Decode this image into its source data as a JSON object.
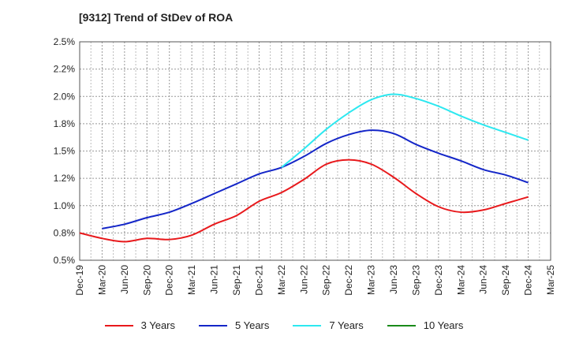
{
  "chart_data": {
    "type": "line",
    "title": "[9312]  Trend of StDev of ROA",
    "xlabel": "",
    "ylabel": "",
    "ylim": [
      0.5,
      2.5
    ],
    "yticks": [
      "0.5%",
      "0.8%",
      "1.0%",
      "1.2%",
      "1.5%",
      "1.8%",
      "2.0%",
      "2.2%",
      "2.5%"
    ],
    "categories": [
      "Dec-19",
      "Mar-20",
      "Jun-20",
      "Sep-20",
      "Dec-20",
      "Mar-21",
      "Jun-21",
      "Sep-21",
      "Dec-21",
      "Mar-22",
      "Jun-22",
      "Sep-22",
      "Dec-22",
      "Mar-23",
      "Jun-23",
      "Sep-23",
      "Dec-23",
      "Mar-24",
      "Jun-24",
      "Sep-24",
      "Dec-24",
      "Mar-25"
    ],
    "grid": true,
    "legend_position": "bottom",
    "series": [
      {
        "name": "3 Years",
        "color": "#e8191c",
        "points": [
          [
            "Dec-19",
            0.75
          ],
          [
            "Mar-20",
            0.7
          ],
          [
            "Jun-20",
            0.67
          ],
          [
            "Sep-20",
            0.7
          ],
          [
            "Dec-20",
            0.69
          ],
          [
            "Mar-21",
            0.73
          ],
          [
            "Jun-21",
            0.83
          ],
          [
            "Sep-21",
            0.91
          ],
          [
            "Dec-21",
            1.04
          ],
          [
            "Mar-22",
            1.12
          ],
          [
            "Jun-22",
            1.24
          ],
          [
            "Sep-22",
            1.38
          ],
          [
            "Dec-22",
            1.42
          ],
          [
            "Mar-23",
            1.38
          ],
          [
            "Jun-23",
            1.26
          ],
          [
            "Sep-23",
            1.11
          ],
          [
            "Dec-23",
            0.99
          ],
          [
            "Mar-24",
            0.94
          ],
          [
            "Jun-24",
            0.96
          ],
          [
            "Sep-24",
            1.02
          ],
          [
            "Dec-24",
            1.08
          ]
        ]
      },
      {
        "name": "5 Years",
        "color": "#1426c8",
        "points": [
          [
            "Mar-20",
            0.79
          ],
          [
            "Jun-20",
            0.83
          ],
          [
            "Sep-20",
            0.89
          ],
          [
            "Dec-20",
            0.94
          ],
          [
            "Mar-21",
            1.02
          ],
          [
            "Jun-21",
            1.11
          ],
          [
            "Sep-21",
            1.2
          ],
          [
            "Dec-21",
            1.29
          ],
          [
            "Mar-22",
            1.35
          ],
          [
            "Jun-22",
            1.45
          ],
          [
            "Sep-22",
            1.57
          ],
          [
            "Dec-22",
            1.65
          ],
          [
            "Mar-23",
            1.69
          ],
          [
            "Jun-23",
            1.66
          ],
          [
            "Sep-23",
            1.56
          ],
          [
            "Dec-23",
            1.48
          ],
          [
            "Mar-24",
            1.41
          ],
          [
            "Jun-24",
            1.33
          ],
          [
            "Sep-24",
            1.28
          ],
          [
            "Dec-24",
            1.21
          ]
        ]
      },
      {
        "name": "7 Years",
        "color": "#2de8f0",
        "points": [
          [
            "Mar-22",
            1.35
          ],
          [
            "Jun-22",
            1.52
          ],
          [
            "Sep-22",
            1.7
          ],
          [
            "Dec-22",
            1.85
          ],
          [
            "Mar-23",
            1.97
          ],
          [
            "Jun-23",
            2.02
          ],
          [
            "Sep-23",
            1.98
          ],
          [
            "Dec-23",
            1.91
          ],
          [
            "Mar-24",
            1.82
          ],
          [
            "Jun-24",
            1.74
          ],
          [
            "Sep-24",
            1.67
          ],
          [
            "Dec-24",
            1.6
          ]
        ]
      },
      {
        "name": "10 Years",
        "color": "#1a8a1a",
        "points": []
      }
    ]
  }
}
